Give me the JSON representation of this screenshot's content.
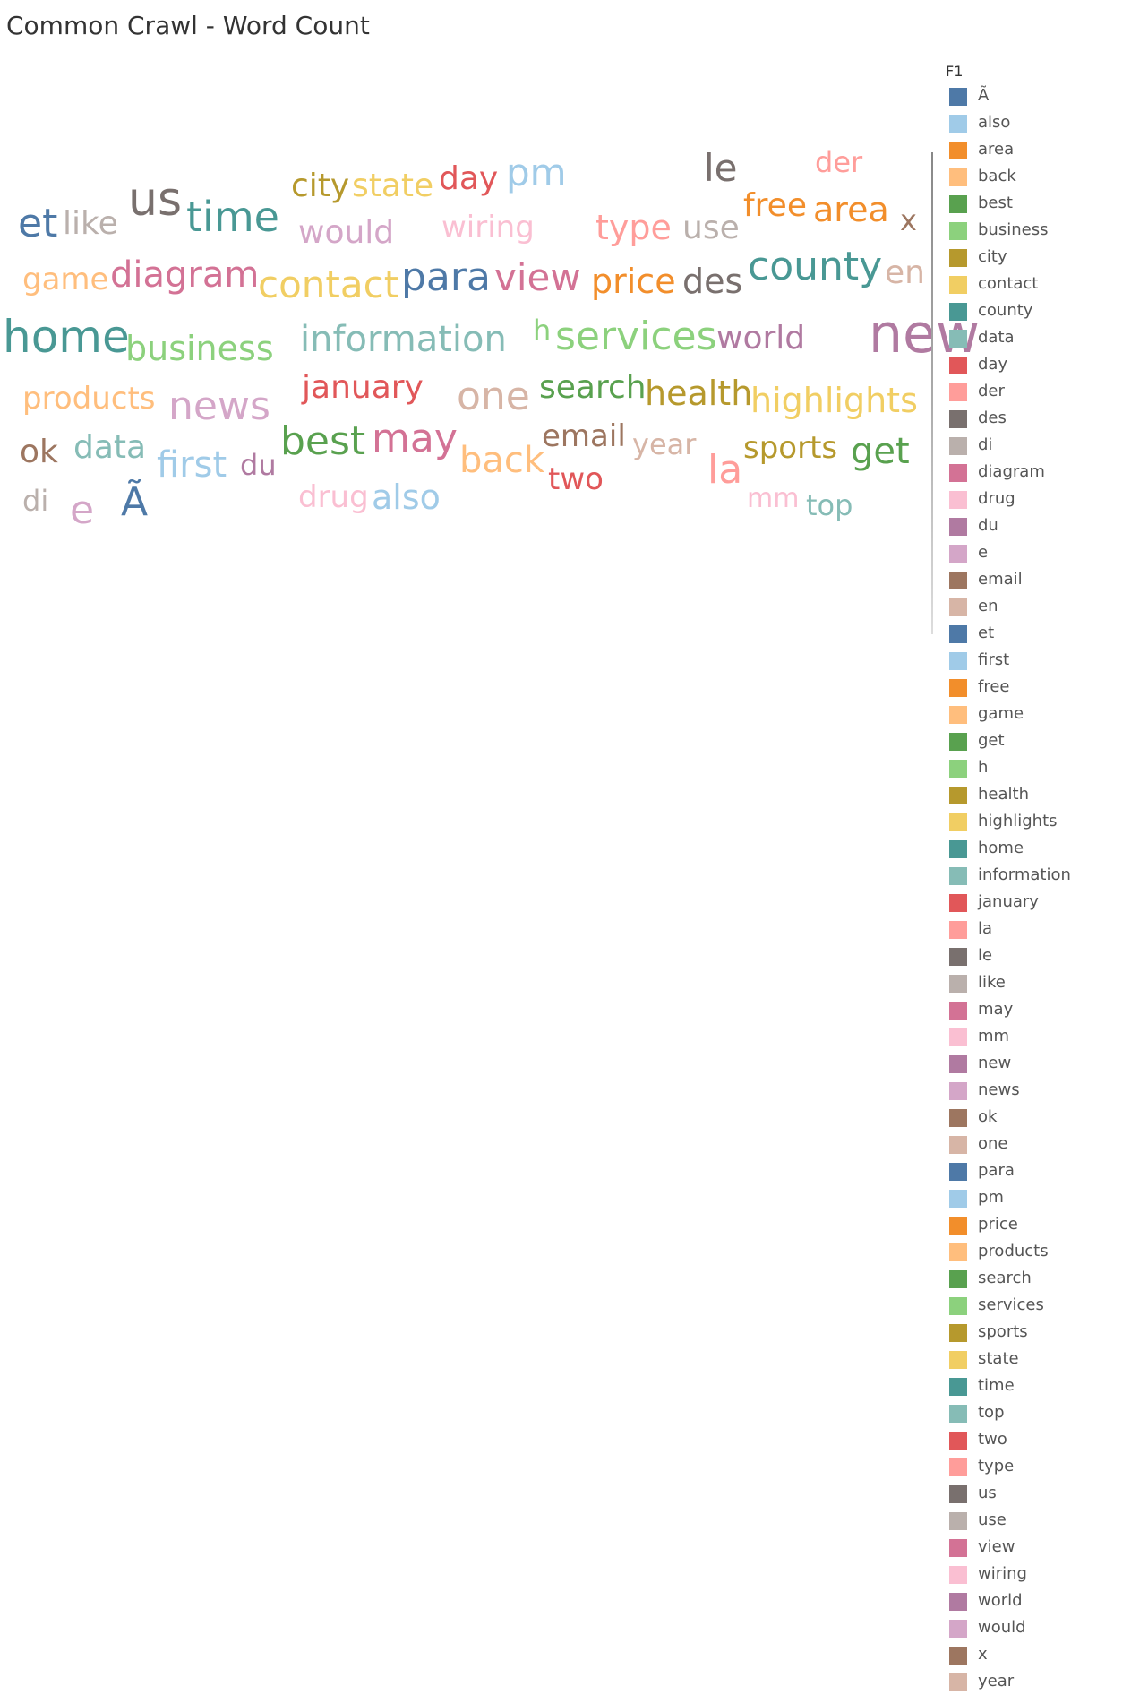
{
  "title": "Common Crawl - Word Count",
  "chart_data": {
    "type": "wordcloud",
    "title": "Common Crawl - Word Count",
    "legend_title": "F1",
    "legend_position": "right",
    "words": [
      {
        "text": "us",
        "color": "#79706e"
      },
      {
        "text": "new",
        "color": "#b07aa1"
      },
      {
        "text": "et",
        "color": "#4e79a7"
      },
      {
        "text": "home",
        "color": "#499894"
      },
      {
        "text": "time",
        "color": "#499894"
      },
      {
        "text": "county",
        "color": "#499894"
      },
      {
        "text": "Ã",
        "color": "#4e79a7"
      },
      {
        "text": "para",
        "color": "#4e79a7"
      },
      {
        "text": "view",
        "color": "#d37295"
      },
      {
        "text": "la",
        "color": "#ff9d9a"
      },
      {
        "text": "best",
        "color": "#59a14f"
      },
      {
        "text": "may",
        "color": "#d37295"
      },
      {
        "text": "services",
        "color": "#8cd17d"
      },
      {
        "text": "contact",
        "color": "#f1ce63"
      },
      {
        "text": "diagram",
        "color": "#d37295"
      },
      {
        "text": "news",
        "color": "#d4a6c8"
      },
      {
        "text": "one",
        "color": "#d7b5a6"
      },
      {
        "text": "information",
        "color": "#86bcb6"
      },
      {
        "text": "pm",
        "color": "#a0cbe8"
      },
      {
        "text": "le",
        "color": "#79706e"
      },
      {
        "text": "e",
        "color": "#d4a6c8"
      },
      {
        "text": "business",
        "color": "#8cd17d"
      },
      {
        "text": "first",
        "color": "#a0cbe8"
      },
      {
        "text": "get",
        "color": "#59a14f"
      },
      {
        "text": "price",
        "color": "#f28e2b"
      },
      {
        "text": "des",
        "color": "#79706e"
      },
      {
        "text": "highlights",
        "color": "#f1ce63"
      },
      {
        "text": "health",
        "color": "#b6992d"
      },
      {
        "text": "back",
        "color": "#ffbe7d"
      },
      {
        "text": "area",
        "color": "#f28e2b"
      },
      {
        "text": "free",
        "color": "#f28e2b"
      },
      {
        "text": "world",
        "color": "#b07aa1"
      },
      {
        "text": "type",
        "color": "#ff9d9a"
      },
      {
        "text": "use",
        "color": "#bab0ac"
      },
      {
        "text": "state",
        "color": "#f1ce63"
      },
      {
        "text": "city",
        "color": "#b6992d"
      },
      {
        "text": "day",
        "color": "#e15759"
      },
      {
        "text": "would",
        "color": "#d4a6c8"
      },
      {
        "text": "wiring",
        "color": "#fabfd2"
      },
      {
        "text": "like",
        "color": "#bab0ac"
      },
      {
        "text": "game",
        "color": "#ffbe7d"
      },
      {
        "text": "products",
        "color": "#ffbe7d"
      },
      {
        "text": "january",
        "color": "#e15759"
      },
      {
        "text": "search",
        "color": "#59a14f"
      },
      {
        "text": "email",
        "color": "#9d7660"
      },
      {
        "text": "sports",
        "color": "#b6992d"
      },
      {
        "text": "also",
        "color": "#a0cbe8"
      },
      {
        "text": "data",
        "color": "#86bcb6"
      },
      {
        "text": "ok",
        "color": "#9d7660"
      },
      {
        "text": "en",
        "color": "#d7b5a6"
      },
      {
        "text": "x",
        "color": "#9d7660"
      },
      {
        "text": "der",
        "color": "#ff9d9a"
      },
      {
        "text": "drug",
        "color": "#fabfd2"
      },
      {
        "text": "two",
        "color": "#e15759"
      },
      {
        "text": "year",
        "color": "#d7b5a6"
      },
      {
        "text": "top",
        "color": "#86bcb6"
      },
      {
        "text": "du",
        "color": "#b07aa1"
      },
      {
        "text": "mm",
        "color": "#fabfd2"
      },
      {
        "text": "di",
        "color": "#bab0ac"
      },
      {
        "text": "h",
        "color": "#8cd17d"
      }
    ],
    "legend": [
      {
        "label": "Ã",
        "color": "#4e79a7"
      },
      {
        "label": "also",
        "color": "#a0cbe8"
      },
      {
        "label": "area",
        "color": "#f28e2b"
      },
      {
        "label": "back",
        "color": "#ffbe7d"
      },
      {
        "label": "best",
        "color": "#59a14f"
      },
      {
        "label": "business",
        "color": "#8cd17d"
      },
      {
        "label": "city",
        "color": "#b6992d"
      },
      {
        "label": "contact",
        "color": "#f1ce63"
      },
      {
        "label": "county",
        "color": "#499894"
      },
      {
        "label": "data",
        "color": "#86bcb6"
      },
      {
        "label": "day",
        "color": "#e15759"
      },
      {
        "label": "der",
        "color": "#ff9d9a"
      },
      {
        "label": "des",
        "color": "#79706e"
      },
      {
        "label": "di",
        "color": "#bab0ac"
      },
      {
        "label": "diagram",
        "color": "#d37295"
      },
      {
        "label": "drug",
        "color": "#fabfd2"
      },
      {
        "label": "du",
        "color": "#b07aa1"
      },
      {
        "label": "e",
        "color": "#d4a6c8"
      },
      {
        "label": "email",
        "color": "#9d7660"
      },
      {
        "label": "en",
        "color": "#d7b5a6"
      },
      {
        "label": "et",
        "color": "#4e79a7"
      },
      {
        "label": "first",
        "color": "#a0cbe8"
      },
      {
        "label": "free",
        "color": "#f28e2b"
      },
      {
        "label": "game",
        "color": "#ffbe7d"
      },
      {
        "label": "get",
        "color": "#59a14f"
      },
      {
        "label": "h",
        "color": "#8cd17d"
      },
      {
        "label": "health",
        "color": "#b6992d"
      },
      {
        "label": "highlights",
        "color": "#f1ce63"
      },
      {
        "label": "home",
        "color": "#499894"
      },
      {
        "label": "information",
        "color": "#86bcb6"
      },
      {
        "label": "january",
        "color": "#e15759"
      },
      {
        "label": "la",
        "color": "#ff9d9a"
      },
      {
        "label": "le",
        "color": "#79706e"
      },
      {
        "label": "like",
        "color": "#bab0ac"
      },
      {
        "label": "may",
        "color": "#d37295"
      },
      {
        "label": "mm",
        "color": "#fabfd2"
      },
      {
        "label": "new",
        "color": "#b07aa1"
      },
      {
        "label": "news",
        "color": "#d4a6c8"
      },
      {
        "label": "ok",
        "color": "#9d7660"
      },
      {
        "label": "one",
        "color": "#d7b5a6"
      },
      {
        "label": "para",
        "color": "#4e79a7"
      },
      {
        "label": "pm",
        "color": "#a0cbe8"
      },
      {
        "label": "price",
        "color": "#f28e2b"
      },
      {
        "label": "products",
        "color": "#ffbe7d"
      },
      {
        "label": "search",
        "color": "#59a14f"
      },
      {
        "label": "services",
        "color": "#8cd17d"
      },
      {
        "label": "sports",
        "color": "#b6992d"
      },
      {
        "label": "state",
        "color": "#f1ce63"
      },
      {
        "label": "time",
        "color": "#499894"
      },
      {
        "label": "top",
        "color": "#86bcb6"
      },
      {
        "label": "two",
        "color": "#e15759"
      },
      {
        "label": "type",
        "color": "#ff9d9a"
      },
      {
        "label": "us",
        "color": "#79706e"
      },
      {
        "label": "use",
        "color": "#bab0ac"
      },
      {
        "label": "view",
        "color": "#d37295"
      },
      {
        "label": "wiring",
        "color": "#fabfd2"
      },
      {
        "label": "world",
        "color": "#b07aa1"
      },
      {
        "label": "would",
        "color": "#d4a6c8"
      },
      {
        "label": "x",
        "color": "#9d7660"
      },
      {
        "label": "year",
        "color": "#d7b5a6"
      }
    ]
  }
}
